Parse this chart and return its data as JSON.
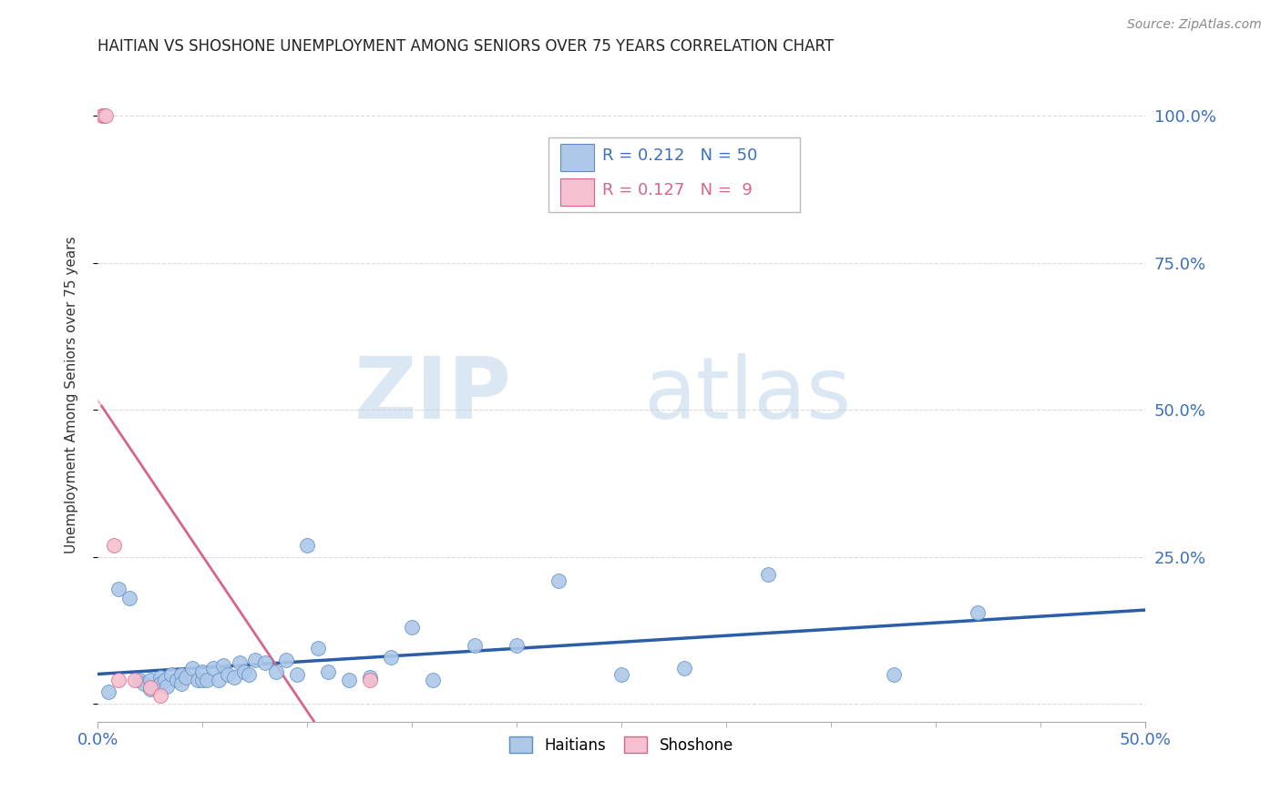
{
  "title": "HAITIAN VS SHOSHONE UNEMPLOYMENT AMONG SENIORS OVER 75 YEARS CORRELATION CHART",
  "source": "Source: ZipAtlas.com",
  "ylabel": "Unemployment Among Seniors over 75 years",
  "right_yticks": [
    1.0,
    0.75,
    0.5,
    0.25
  ],
  "right_yticklabels": [
    "100.0%",
    "75.0%",
    "50.0%",
    "25.0%"
  ],
  "xlim": [
    0.0,
    0.5
  ],
  "ylim": [
    -0.03,
    1.08
  ],
  "haitians": {
    "R": 0.212,
    "N": 50,
    "color": "#adc8e8",
    "edge_color": "#5b8ec4",
    "line_color": "#2b5ea7",
    "scatter_x": [
      0.005,
      0.01,
      0.015,
      0.02,
      0.022,
      0.025,
      0.025,
      0.03,
      0.03,
      0.032,
      0.033,
      0.035,
      0.038,
      0.04,
      0.04,
      0.042,
      0.045,
      0.048,
      0.05,
      0.05,
      0.052,
      0.055,
      0.058,
      0.06,
      0.062,
      0.065,
      0.068,
      0.07,
      0.072,
      0.075,
      0.08,
      0.085,
      0.09,
      0.095,
      0.1,
      0.105,
      0.11,
      0.12,
      0.13,
      0.14,
      0.15,
      0.16,
      0.18,
      0.2,
      0.22,
      0.25,
      0.28,
      0.32,
      0.38,
      0.42
    ],
    "scatter_y": [
      0.02,
      0.195,
      0.18,
      0.04,
      0.035,
      0.04,
      0.025,
      0.045,
      0.035,
      0.04,
      0.03,
      0.05,
      0.04,
      0.05,
      0.035,
      0.045,
      0.06,
      0.04,
      0.04,
      0.055,
      0.04,
      0.06,
      0.04,
      0.065,
      0.05,
      0.045,
      0.07,
      0.055,
      0.05,
      0.075,
      0.07,
      0.055,
      0.075,
      0.05,
      0.27,
      0.095,
      0.055,
      0.04,
      0.045,
      0.08,
      0.13,
      0.04,
      0.1,
      0.1,
      0.21,
      0.05,
      0.06,
      0.22,
      0.05,
      0.155
    ]
  },
  "shoshone": {
    "R": 0.127,
    "N": 9,
    "color": "#f5c0cf",
    "edge_color": "#d9648a",
    "line_color": "#d9648a",
    "scatter_x": [
      0.002,
      0.003,
      0.004,
      0.008,
      0.01,
      0.018,
      0.025,
      0.03,
      0.13
    ],
    "scatter_y": [
      1.0,
      1.0,
      1.0,
      0.27,
      0.04,
      0.04,
      0.028,
      0.015,
      0.04
    ]
  },
  "watermark_zip": "ZIP",
  "watermark_atlas": "atlas",
  "background_color": "#ffffff",
  "grid_color": "#cccccc"
}
